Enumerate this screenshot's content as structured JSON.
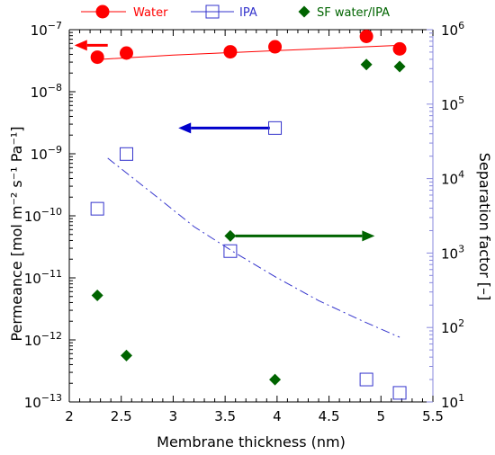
{
  "chart_data": {
    "type": "scatter",
    "xlabel": "Membrane thickness (nm)",
    "ylabel_left": "Permeance [mol m⁻² s⁻¹ Pa⁻¹]",
    "ylabel_right": "Separation factor [–]",
    "xlim": [
      2,
      5.5
    ],
    "ylim_left": [
      1e-13,
      1e-07
    ],
    "ylim_right": [
      10,
      1000000
    ],
    "left_scale": "log",
    "right_scale": "log",
    "x_ticks": [
      "2",
      "2.5",
      "3",
      "3.5",
      "4",
      "4.5",
      "5",
      "5.5"
    ],
    "left_ticks": [
      {
        "base": "10",
        "exp": "−13"
      },
      {
        "base": "10",
        "exp": "−12"
      },
      {
        "base": "10",
        "exp": "−11"
      },
      {
        "base": "10",
        "exp": "−10"
      },
      {
        "base": "10",
        "exp": "−9"
      },
      {
        "base": "10",
        "exp": "−8"
      },
      {
        "base": "10",
        "exp": "−7"
      }
    ],
    "right_ticks": [
      {
        "base": "10",
        "exp": "1"
      },
      {
        "base": "10",
        "exp": "2"
      },
      {
        "base": "10",
        "exp": "3"
      },
      {
        "base": "10",
        "exp": "4"
      },
      {
        "base": "10",
        "exp": "5"
      },
      {
        "base": "10",
        "exp": "6"
      }
    ],
    "grid": false,
    "legend_position": "top",
    "series": [
      {
        "name": "Water",
        "axis": "left",
        "marker": "filled-circle",
        "color": "#ff0000",
        "points": [
          [
            2.27,
            3.6e-08
          ],
          [
            2.55,
            4.2e-08
          ],
          [
            3.55,
            4.4e-08
          ],
          [
            3.98,
            5.3e-08
          ],
          [
            4.86,
            7.8e-08
          ],
          [
            5.18,
            4.9e-08
          ]
        ]
      },
      {
        "name": "IPA",
        "axis": "left",
        "marker": "open-square",
        "color": "#3333cc",
        "points": [
          [
            2.27,
            1.3e-10
          ],
          [
            2.55,
            9.9e-10
          ],
          [
            3.55,
            2.7e-11
          ],
          [
            3.98,
            2.6e-09
          ],
          [
            4.86,
            2.3e-13
          ],
          [
            5.18,
            1.4e-13
          ]
        ]
      },
      {
        "name": "SF water/IPA",
        "axis": "right",
        "marker": "filled-diamond",
        "color": "#006400",
        "points": [
          [
            2.27,
            270
          ],
          [
            2.55,
            42
          ],
          [
            3.55,
            1700
          ],
          [
            3.98,
            20
          ],
          [
            4.86,
            340000
          ],
          [
            5.18,
            320000
          ]
        ]
      }
    ],
    "fits": [
      {
        "for": "Water",
        "axis": "left",
        "style": "solid",
        "color": "#ff0000",
        "points": [
          [
            2.27,
            3.3e-08
          ],
          [
            3.0,
            3.9e-08
          ],
          [
            4.0,
            4.6e-08
          ],
          [
            5.18,
            5.6e-08
          ]
        ]
      },
      {
        "for": "IPA",
        "axis": "left",
        "style": "dash-dot",
        "color": "#3333cc",
        "points": [
          [
            2.37,
            8.5e-10
          ],
          [
            2.8,
            2.3e-10
          ],
          [
            3.2,
            6.7e-11
          ],
          [
            3.6,
            2.5e-11
          ],
          [
            4.0,
            1e-11
          ],
          [
            4.4,
            4.3e-12
          ],
          [
            4.8,
            2.1e-12
          ],
          [
            5.18,
            1.1e-12
          ]
        ]
      }
    ],
    "arrows": [
      {
        "color": "#ff0000",
        "from": [
          2.37,
          5.6e-08
        ],
        "to": [
          2.05,
          5.6e-08
        ],
        "axis": "left"
      },
      {
        "color": "#0000cc",
        "from": [
          3.93,
          2.6e-09
        ],
        "to": [
          3.05,
          2.6e-09
        ],
        "axis": "left"
      },
      {
        "color": "#006400",
        "from": [
          3.6,
          1700
        ],
        "to": [
          4.94,
          1700
        ],
        "axis": "right"
      }
    ]
  },
  "colors": {
    "water": "#ff0000",
    "ipa": "#3333cc",
    "ipa_axis": "#8888dd",
    "sf": "#006400",
    "axis": "#000000"
  }
}
